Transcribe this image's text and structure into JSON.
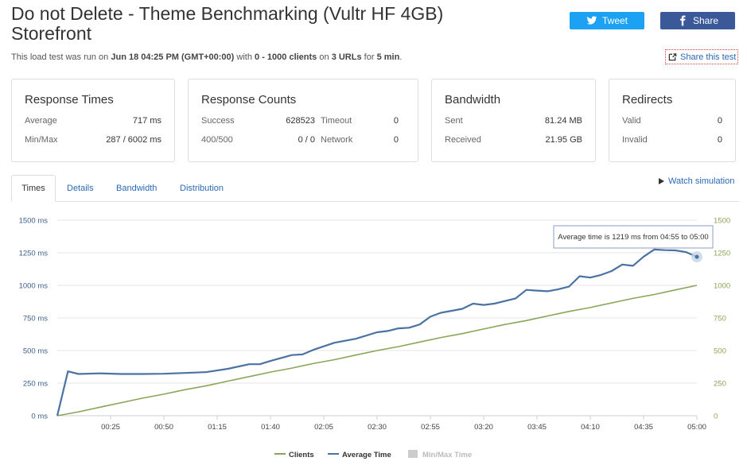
{
  "header": {
    "title": "Do not Delete - Theme Benchmarking (Vultr HF 4GB) Storefront",
    "subtitle": {
      "prefix": "This load test was run on",
      "date": "Jun 18 04:25 PM (GMT+00:00)",
      "with": "with",
      "clients": "0 - 1000 clients",
      "on": "on",
      "urls": "3 URLs",
      "for": "for",
      "duration": "5 min",
      "suffix": "."
    },
    "tweet_label": "Tweet",
    "share_label": "Share",
    "share_test_label": "Share this test"
  },
  "cards": {
    "response_times": {
      "title": "Response Times",
      "average_label": "Average",
      "average": "717 ms",
      "minmax_label": "Min/Max",
      "minmax": "287 / 6002 ms"
    },
    "response_counts": {
      "title": "Response Counts",
      "success_label": "Success",
      "success": "628523",
      "timeout_label": "Timeout",
      "timeout": "0",
      "error_label": "400/500",
      "error": "0 / 0",
      "network_label": "Network",
      "network": "0"
    },
    "bandwidth": {
      "title": "Bandwidth",
      "sent_label": "Sent",
      "sent": "81.24 MB",
      "received_label": "Received",
      "received": "21.95 GB"
    },
    "redirects": {
      "title": "Redirects",
      "valid_label": "Valid",
      "valid": "0",
      "invalid_label": "Invalid",
      "invalid": "0"
    }
  },
  "tabs": {
    "times": "Times",
    "details": "Details",
    "bandwidth": "Bandwidth",
    "distribution": "Distribution"
  },
  "watch_label": "Watch simulation",
  "colors": {
    "clients": "#8aa55a",
    "average": "#4a72a3",
    "minmax": "#cccccc",
    "link": "#2a6ab3"
  },
  "chart_data": {
    "type": "line",
    "x_ticks": [
      "00:25",
      "00:50",
      "01:15",
      "01:40",
      "02:05",
      "02:30",
      "02:55",
      "03:20",
      "03:45",
      "04:10",
      "04:35",
      "05:00"
    ],
    "xlim_seconds": [
      0,
      300
    ],
    "y_left_ticks": [
      "0 ms",
      "250 ms",
      "500 ms",
      "750 ms",
      "1000 ms",
      "1250 ms",
      "1500 ms"
    ],
    "y_right_ticks": [
      "0",
      "250",
      "500",
      "750",
      "1000",
      "1250",
      "1500"
    ],
    "ylim": [
      0,
      1500
    ],
    "tooltip": "Average time is 1219 ms from 04:55 to 05:00",
    "series": [
      {
        "name": "Clients",
        "x": [
          0,
          10,
          20,
          30,
          40,
          50,
          60,
          70,
          80,
          90,
          100,
          110,
          120,
          130,
          140,
          150,
          160,
          170,
          180,
          190,
          200,
          210,
          220,
          230,
          240,
          250,
          260,
          270,
          280,
          290,
          300
        ],
        "values": [
          0,
          30,
          65,
          100,
          135,
          165,
          200,
          230,
          265,
          300,
          335,
          365,
          400,
          430,
          465,
          500,
          530,
          565,
          600,
          630,
          665,
          700,
          730,
          765,
          800,
          830,
          865,
          900,
          930,
          965,
          1000
        ]
      },
      {
        "name": "Average Time",
        "x": [
          0,
          5,
          10,
          20,
          30,
          40,
          50,
          60,
          70,
          80,
          90,
          95,
          100,
          110,
          115,
          120,
          130,
          135,
          140,
          150,
          155,
          160,
          165,
          170,
          175,
          180,
          185,
          190,
          195,
          200,
          205,
          210,
          215,
          220,
          225,
          230,
          235,
          240,
          245,
          250,
          255,
          260,
          265,
          270,
          275,
          280,
          285,
          290,
          295,
          300
        ],
        "values": [
          0,
          340,
          320,
          325,
          320,
          320,
          322,
          328,
          335,
          360,
          395,
          395,
          420,
          465,
          470,
          505,
          560,
          575,
          590,
          640,
          650,
          670,
          675,
          700,
          760,
          790,
          805,
          820,
          860,
          850,
          860,
          880,
          900,
          965,
          960,
          955,
          970,
          990,
          1070,
          1060,
          1080,
          1110,
          1160,
          1150,
          1220,
          1275,
          1270,
          1268,
          1255,
          1219
        ]
      },
      {
        "name": "Min/Max Time",
        "x": [],
        "values": []
      }
    ]
  }
}
